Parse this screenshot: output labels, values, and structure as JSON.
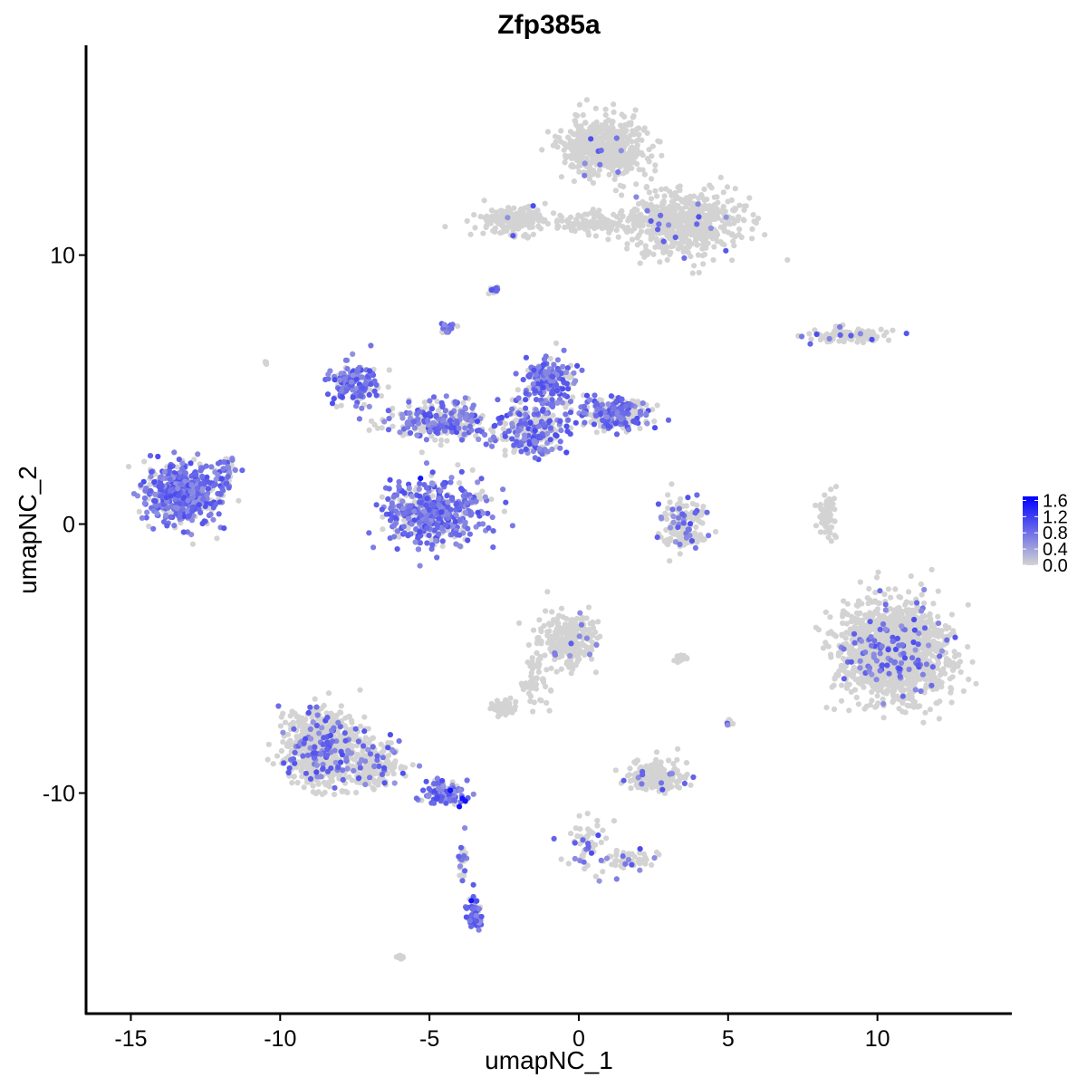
{
  "chart_data": {
    "type": "scatter",
    "title": "Zfp385a",
    "xlabel": "umapNC_1",
    "ylabel": "umapNC_2",
    "xlim": [
      -16.5,
      14.5
    ],
    "ylim": [
      -18.2,
      17.8
    ],
    "x_ticks": [
      -15,
      -10,
      -5,
      0,
      5,
      10
    ],
    "x_tick_labels": [
      "-15",
      "-10",
      "-5",
      "0",
      "5",
      "10"
    ],
    "y_ticks": [
      -10,
      0,
      10
    ],
    "y_tick_labels": [
      "-10",
      "0",
      "10"
    ],
    "grid": false,
    "legend_position": "right",
    "color_low": "#d3d3d3",
    "color_high": "#0000ff",
    "color_range": [
      0,
      1.7
    ],
    "legend_ticks": [
      1.6,
      1.2,
      0.8,
      0.4,
      0.0
    ],
    "legend_tick_labels": [
      "1.6",
      "1.2",
      "0.8",
      "0.4",
      "0.0"
    ],
    "clusters": [
      {
        "name": "",
        "center": [
          0.9,
          14.0
        ],
        "spread": [
          1.3,
          1.0
        ],
        "count": 550,
        "expr_frac": 0.01
      },
      {
        "name": "",
        "center": [
          3.5,
          11.2
        ],
        "spread": [
          1.7,
          1.1
        ],
        "count": 600,
        "expr_frac": 0.02
      },
      {
        "name": "",
        "center": [
          -2.2,
          11.3
        ],
        "spread": [
          1.0,
          0.5
        ],
        "count": 180,
        "expr_frac": 0.02
      },
      {
        "name": "",
        "center": [
          0.6,
          11.2
        ],
        "spread": [
          1.3,
          0.35
        ],
        "count": 120,
        "expr_frac": 0.0
      },
      {
        "name": "",
        "center": [
          -2.8,
          8.7
        ],
        "spread": [
          0.2,
          0.15
        ],
        "count": 12,
        "expr_frac": 0.6
      },
      {
        "name": "",
        "center": [
          9.0,
          7.0
        ],
        "spread": [
          1.3,
          0.25
        ],
        "count": 110,
        "expr_frac": 0.12
      },
      {
        "name": "",
        "center": [
          -13.3,
          1.1
        ],
        "spread": [
          1.1,
          1.0
        ],
        "count": 520,
        "expr_frac": 0.75
      },
      {
        "name": "",
        "center": [
          -11.8,
          1.9
        ],
        "spread": [
          0.35,
          0.55
        ],
        "count": 45,
        "expr_frac": 0.6
      },
      {
        "name": "",
        "center": [
          -7.5,
          5.2
        ],
        "spread": [
          0.7,
          0.7
        ],
        "count": 170,
        "expr_frac": 0.7
      },
      {
        "name": "",
        "center": [
          -4.6,
          3.8
        ],
        "spread": [
          1.5,
          0.6
        ],
        "count": 280,
        "expr_frac": 0.5
      },
      {
        "name": "",
        "center": [
          -1.6,
          3.5
        ],
        "spread": [
          1.2,
          0.8
        ],
        "count": 250,
        "expr_frac": 0.45
      },
      {
        "name": "",
        "center": [
          -4.8,
          0.4
        ],
        "spread": [
          1.5,
          1.1
        ],
        "count": 480,
        "expr_frac": 0.7
      },
      {
        "name": "",
        "center": [
          -1.0,
          5.3
        ],
        "spread": [
          0.7,
          0.8
        ],
        "count": 220,
        "expr_frac": 0.65
      },
      {
        "name": "",
        "center": [
          1.2,
          4.1
        ],
        "spread": [
          1.1,
          0.5
        ],
        "count": 260,
        "expr_frac": 0.5
      },
      {
        "name": "",
        "center": [
          -4.4,
          7.3
        ],
        "spread": [
          0.2,
          0.25
        ],
        "count": 20,
        "expr_frac": 0.7
      },
      {
        "name": "",
        "center": [
          3.5,
          0.2
        ],
        "spread": [
          0.6,
          0.8
        ],
        "count": 120,
        "expr_frac": 0.25
      },
      {
        "name": "",
        "center": [
          3.5,
          -0.6
        ],
        "spread": [
          0.8,
          0.25
        ],
        "count": 60,
        "expr_frac": 0.1
      },
      {
        "name": "",
        "center": [
          10.5,
          -4.8
        ],
        "spread": [
          1.6,
          1.6
        ],
        "count": 1600,
        "expr_frac": 0.06
      },
      {
        "name": "",
        "center": [
          8.3,
          0.3
        ],
        "spread": [
          0.25,
          0.8
        ],
        "count": 60,
        "expr_frac": 0.0
      },
      {
        "name": "",
        "center": [
          -0.4,
          -4.3
        ],
        "spread": [
          0.9,
          0.9
        ],
        "count": 260,
        "expr_frac": 0.06
      },
      {
        "name": "",
        "center": [
          -2.5,
          -6.8
        ],
        "spread": [
          0.35,
          0.25
        ],
        "count": 60,
        "expr_frac": 0.0
      },
      {
        "name": "",
        "center": [
          -1.5,
          -5.8
        ],
        "spread": [
          0.4,
          0.8
        ],
        "count": 50,
        "expr_frac": 0.0
      },
      {
        "name": "",
        "center": [
          2.5,
          -9.4
        ],
        "spread": [
          0.9,
          0.5
        ],
        "count": 180,
        "expr_frac": 0.05
      },
      {
        "name": "",
        "center": [
          -8.6,
          -8.3
        ],
        "spread": [
          1.1,
          1.3
        ],
        "count": 700,
        "expr_frac": 0.14
      },
      {
        "name": "",
        "center": [
          -6.8,
          -9.0
        ],
        "spread": [
          0.8,
          0.8
        ],
        "count": 180,
        "expr_frac": 0.15
      },
      {
        "name": "",
        "center": [
          -4.5,
          -10.0
        ],
        "spread": [
          0.6,
          0.35
        ],
        "count": 120,
        "expr_frac": 0.75
      },
      {
        "name": "",
        "center": [
          -3.5,
          -14.5
        ],
        "spread": [
          0.25,
          0.6
        ],
        "count": 60,
        "expr_frac": 0.8
      },
      {
        "name": "",
        "center": [
          -3.9,
          -12.4
        ],
        "spread": [
          0.1,
          0.8
        ],
        "count": 25,
        "expr_frac": 0.4
      },
      {
        "name": "",
        "center": [
          0.3,
          -11.9
        ],
        "spread": [
          0.7,
          1.0
        ],
        "count": 60,
        "expr_frac": 0.15
      },
      {
        "name": "",
        "center": [
          1.8,
          -12.5
        ],
        "spread": [
          0.8,
          0.3
        ],
        "count": 50,
        "expr_frac": 0.1
      },
      {
        "name": "",
        "center": [
          5.0,
          -7.4
        ],
        "spread": [
          0.12,
          0.2
        ],
        "count": 10,
        "expr_frac": 0.5
      },
      {
        "name": "",
        "center": [
          -6.0,
          -16.1
        ],
        "spread": [
          0.15,
          0.1
        ],
        "count": 8,
        "expr_frac": 0.0
      },
      {
        "name": "",
        "center": [
          3.5,
          -5.0
        ],
        "spread": [
          0.4,
          0.1
        ],
        "count": 15,
        "expr_frac": 0.0
      },
      {
        "name": "",
        "center": [
          -10.5,
          6.0
        ],
        "spread": [
          0.1,
          0.1
        ],
        "count": 4,
        "expr_frac": 0.0
      }
    ]
  }
}
